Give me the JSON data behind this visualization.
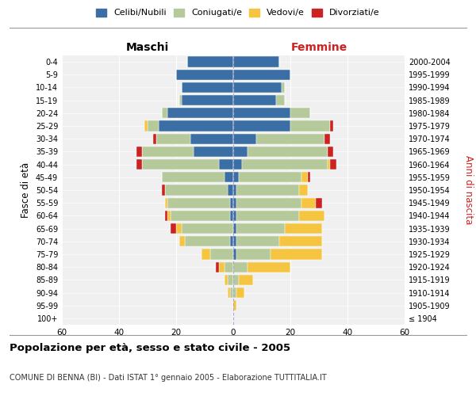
{
  "age_groups": [
    "100+",
    "95-99",
    "90-94",
    "85-89",
    "80-84",
    "75-79",
    "70-74",
    "65-69",
    "60-64",
    "55-59",
    "50-54",
    "45-49",
    "40-44",
    "35-39",
    "30-34",
    "25-29",
    "20-24",
    "15-19",
    "10-14",
    "5-9",
    "0-4"
  ],
  "birth_years": [
    "≤ 1904",
    "1905-1909",
    "1910-1914",
    "1915-1919",
    "1920-1924",
    "1925-1929",
    "1930-1934",
    "1935-1939",
    "1940-1944",
    "1945-1949",
    "1950-1954",
    "1955-1959",
    "1960-1964",
    "1965-1969",
    "1970-1974",
    "1975-1979",
    "1980-1984",
    "1985-1989",
    "1990-1994",
    "1995-1999",
    "2000-2004"
  ],
  "male": {
    "celibi": [
      0,
      0,
      0,
      0,
      0,
      0,
      1,
      0,
      1,
      1,
      2,
      3,
      5,
      14,
      15,
      26,
      23,
      18,
      18,
      20,
      16
    ],
    "coniugati": [
      0,
      0,
      1,
      2,
      3,
      8,
      16,
      18,
      21,
      22,
      22,
      22,
      27,
      18,
      12,
      4,
      2,
      1,
      0,
      0,
      0
    ],
    "vedovi": [
      0,
      0,
      1,
      1,
      2,
      3,
      2,
      2,
      1,
      1,
      0,
      0,
      0,
      0,
      0,
      1,
      0,
      0,
      0,
      0,
      0
    ],
    "divorziati": [
      0,
      0,
      0,
      0,
      1,
      0,
      0,
      2,
      1,
      0,
      1,
      0,
      2,
      2,
      1,
      0,
      0,
      0,
      0,
      0,
      0
    ]
  },
  "female": {
    "nubili": [
      0,
      0,
      0,
      0,
      0,
      1,
      1,
      1,
      1,
      1,
      1,
      2,
      3,
      5,
      8,
      20,
      20,
      15,
      17,
      20,
      16
    ],
    "coniugate": [
      0,
      0,
      1,
      2,
      5,
      12,
      15,
      17,
      22,
      23,
      22,
      22,
      30,
      28,
      24,
      14,
      7,
      3,
      1,
      0,
      0
    ],
    "vedove": [
      0,
      1,
      3,
      5,
      15,
      18,
      15,
      13,
      9,
      5,
      3,
      2,
      1,
      0,
      0,
      0,
      0,
      0,
      0,
      0,
      0
    ],
    "divorziate": [
      0,
      0,
      0,
      0,
      0,
      0,
      0,
      0,
      0,
      2,
      0,
      1,
      2,
      2,
      2,
      1,
      0,
      0,
      0,
      0,
      0
    ]
  },
  "colors": {
    "celibi": "#3a6ea5",
    "coniugati": "#b5c99a",
    "vedovi": "#f5c542",
    "divorziati": "#cc2222"
  },
  "legend_labels": [
    "Celibi/Nubili",
    "Coniugati/e",
    "Vedovi/e",
    "Divorziati/e"
  ],
  "title": "Popolazione per età, sesso e stato civile - 2005",
  "subtitle": "COMUNE DI BENNA (BI) - Dati ISTAT 1° gennaio 2005 - Elaborazione TUTTITALIA.IT",
  "xlabel_left": "Maschi",
  "xlabel_right": "Femmine",
  "ylabel_left": "Fasce di età",
  "ylabel_right": "Anni di nascita",
  "xlim": 60,
  "bg_color": "#f0f0f0",
  "grid_color": "#cccccc"
}
